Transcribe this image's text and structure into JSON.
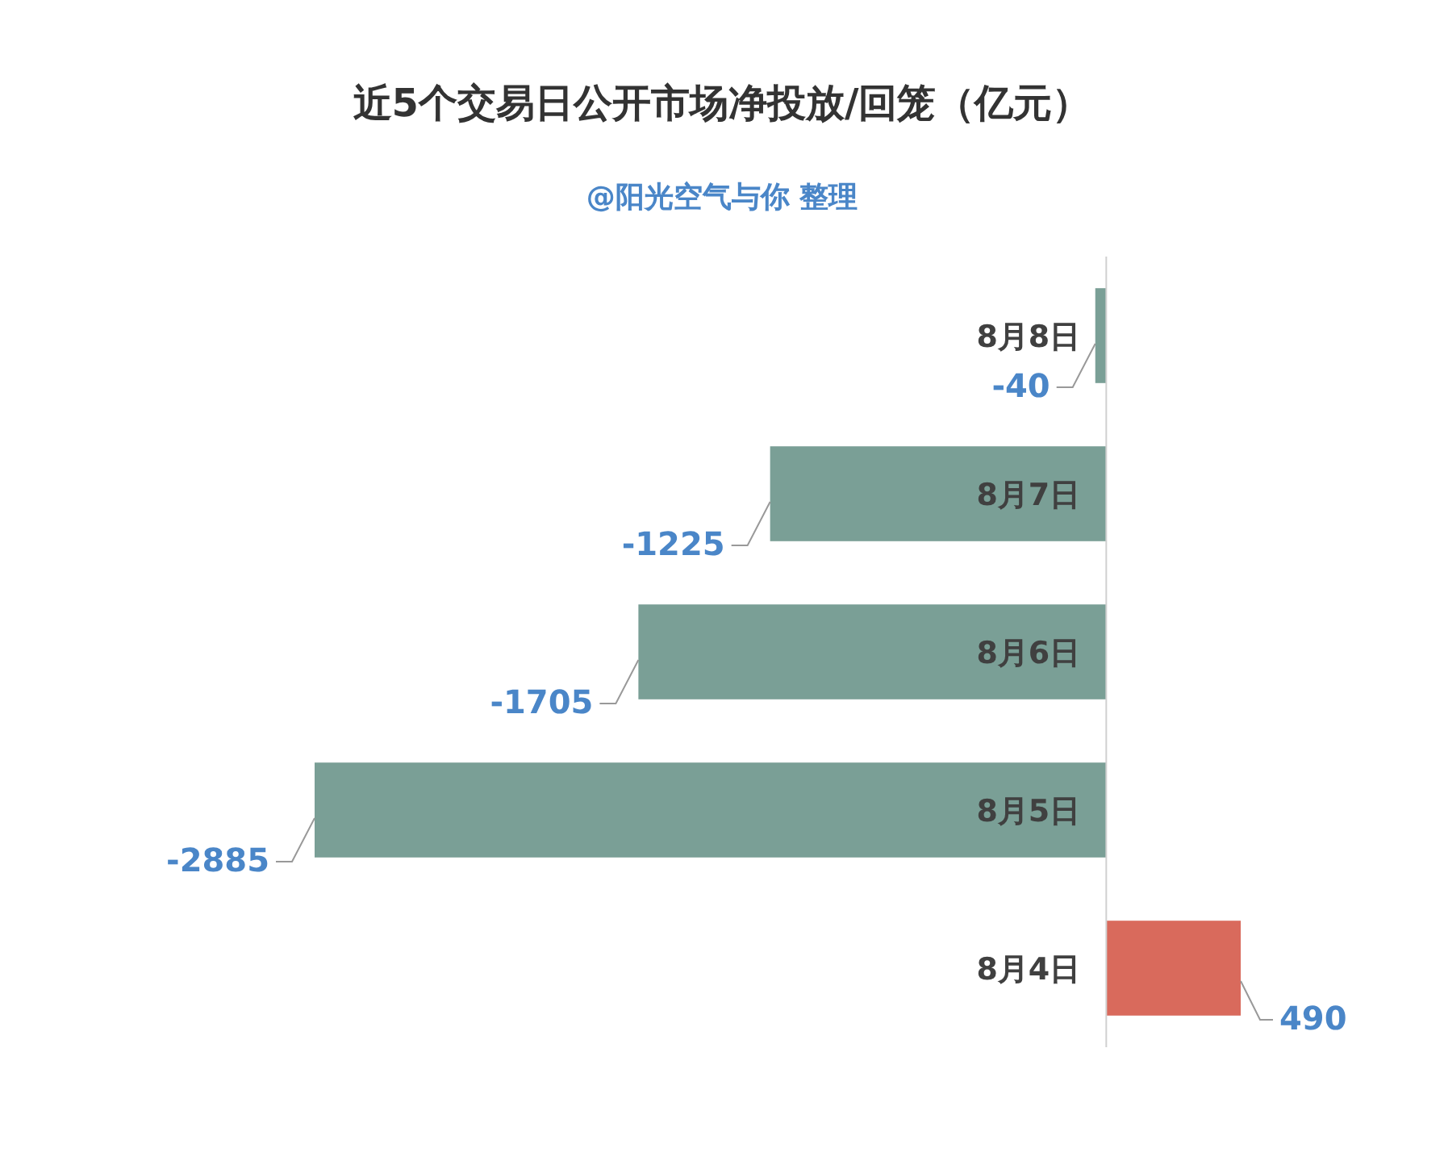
{
  "chart_data": {
    "type": "bar",
    "orientation": "horizontal",
    "title": "近5个交易日公开市场净投放/回笼（亿元）",
    "subtitle": "@阳光空气与你 整理",
    "categories": [
      "8月8日",
      "8月7日",
      "8月6日",
      "8月5日",
      "8月4日"
    ],
    "values": [
      -40,
      -1225,
      -1705,
      -2885,
      490
    ],
    "colors": [
      "#7a9f96",
      "#7a9f96",
      "#7a9f96",
      "#7a9f96",
      "#d96a5c"
    ],
    "data_labels": true,
    "grid": false
  }
}
